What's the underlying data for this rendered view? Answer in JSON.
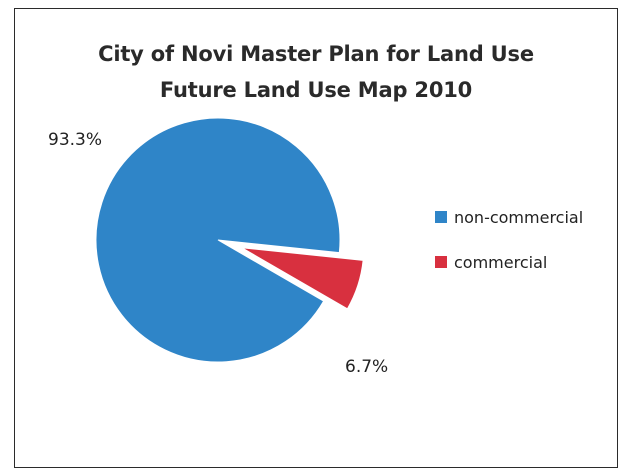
{
  "chart_data": {
    "type": "pie",
    "title": [
      "City of Novi Master Plan for Land Use",
      "Future Land Use Map 2010"
    ],
    "categories": [
      "non-commercial",
      "commercial"
    ],
    "values": [
      93.3,
      6.7
    ],
    "data_labels": [
      "93.3%",
      "6.7%"
    ],
    "colors": [
      "#2f85c8",
      "#d8303f"
    ],
    "legend_position": "right",
    "exploded": [
      "commercial"
    ]
  }
}
